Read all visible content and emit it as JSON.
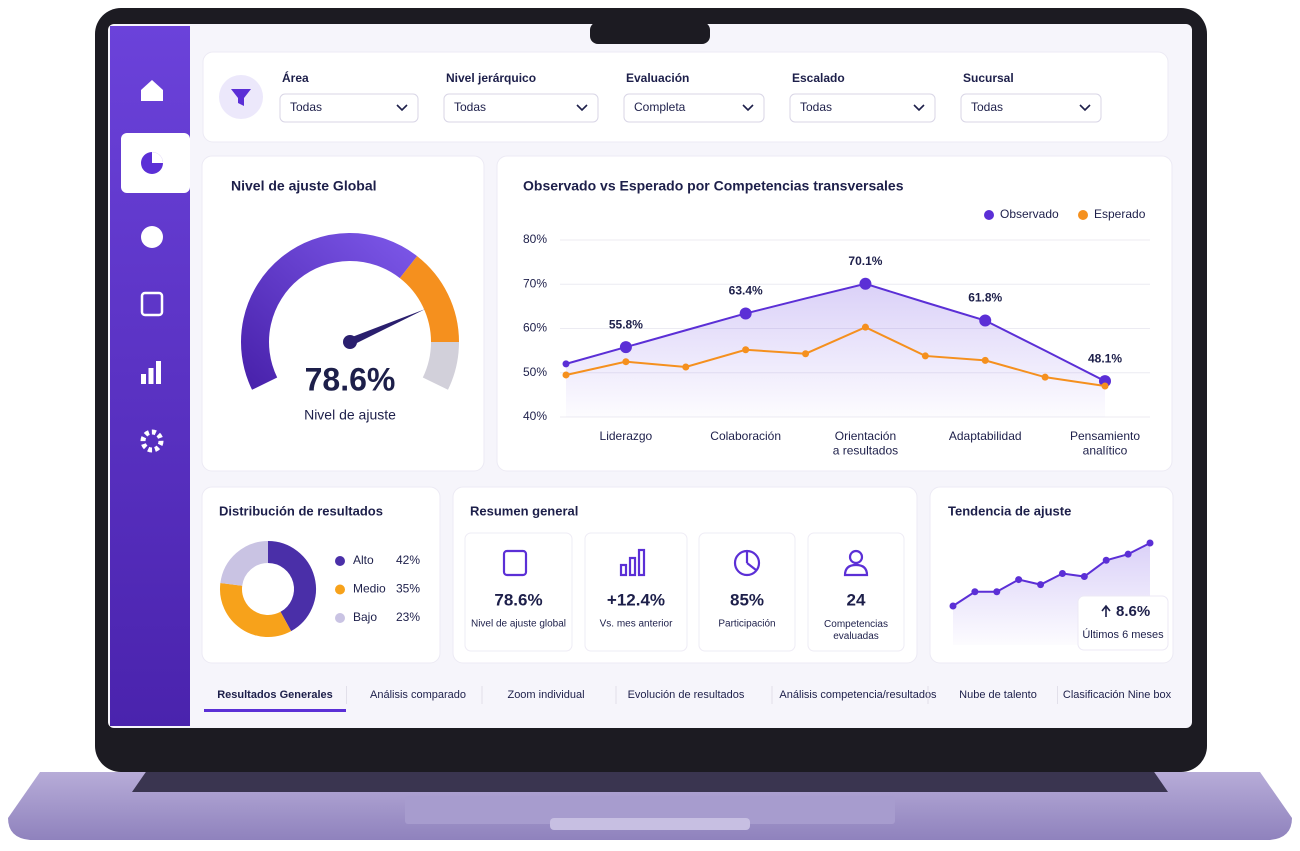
{
  "filters": [
    {
      "label": "Área",
      "value": "Todas"
    },
    {
      "label": "Nivel jerárquico",
      "value": "Todas"
    },
    {
      "label": "Evaluación",
      "value": "Completa"
    },
    {
      "label": "Escalado",
      "value": "Todas"
    },
    {
      "label": "Sucursal",
      "value": "Todas"
    }
  ],
  "chart_data": [
    {
      "type": "gauge",
      "title": "Nivel de ajuste Global",
      "value": 78.6,
      "value_label": "78.6%",
      "subtitle": "Nivel de ajuste"
    },
    {
      "type": "line",
      "title": "Observado vs Esperado por Competencias transversales",
      "categories": [
        null,
        "Liderazgo",
        null,
        "Colaboración",
        null,
        "Orientación\na resultados",
        null,
        "Adaptabilidad",
        null,
        "Pensamiento\nanalítico"
      ],
      "series": [
        {
          "name": "Observado",
          "color": "#5b2fd6",
          "values": [
            52,
            55.8,
            59.6,
            63.4,
            66.8,
            70.1,
            65.9,
            61.8,
            55,
            48.1
          ],
          "value_labels": [
            null,
            "55.8%",
            null,
            "63.4%",
            null,
            "70.1%",
            null,
            "61.8%",
            null,
            "48.1%"
          ]
        },
        {
          "name": "Esperado",
          "color": "#f5901e",
          "values": [
            49.5,
            52.5,
            51.3,
            55.2,
            54.3,
            60.3,
            53.8,
            52.8,
            49,
            47
          ]
        }
      ],
      "ylim": [
        40,
        80
      ],
      "yticks": [
        {
          "value": 40,
          "label": "40%"
        },
        {
          "value": 50,
          "label": "50%"
        },
        {
          "value": 60,
          "label": "60%"
        },
        {
          "value": 70,
          "label": "70%"
        },
        {
          "value": 80,
          "label": "80%"
        }
      ],
      "grid": true,
      "legend": "top-right"
    },
    {
      "type": "pie",
      "title": "Distribución de resultados",
      "donut": true,
      "categories": [
        "Alto",
        "Medio",
        "Bajo"
      ],
      "values": [
        42,
        35,
        23
      ],
      "value_labels": [
        "42%",
        "35%",
        "23%"
      ],
      "colors": [
        "#4a2fa8",
        "#f7a21b",
        "#c9c3e3"
      ]
    },
    {
      "type": "trend",
      "title": "Tendencia de ajuste",
      "color": "#5b2fd6",
      "values": [
        45,
        59,
        59,
        71,
        66,
        77,
        74,
        90,
        96,
        107
      ],
      "annotation": "8.6%",
      "annotation_caption": "Últimos 6 meses"
    }
  ],
  "summary": {
    "title": "Resumen general",
    "cards": [
      {
        "value": "78.6%",
        "label": "Nivel de ajuste global"
      },
      {
        "value": "+12.4%",
        "label": "Vs. mes anterior"
      },
      {
        "value": "85%",
        "label": "Participación"
      },
      {
        "value": "24",
        "label": "Competencias\nevaluadas"
      }
    ]
  },
  "tabs": {
    "active": 0,
    "items": [
      "Resultados Generales",
      "Análisis comparado",
      "Zoom individual",
      "Evolución de resultados",
      "Análisis competencia/resultados",
      "Nube de talento",
      "Clasificación Nine box"
    ]
  }
}
